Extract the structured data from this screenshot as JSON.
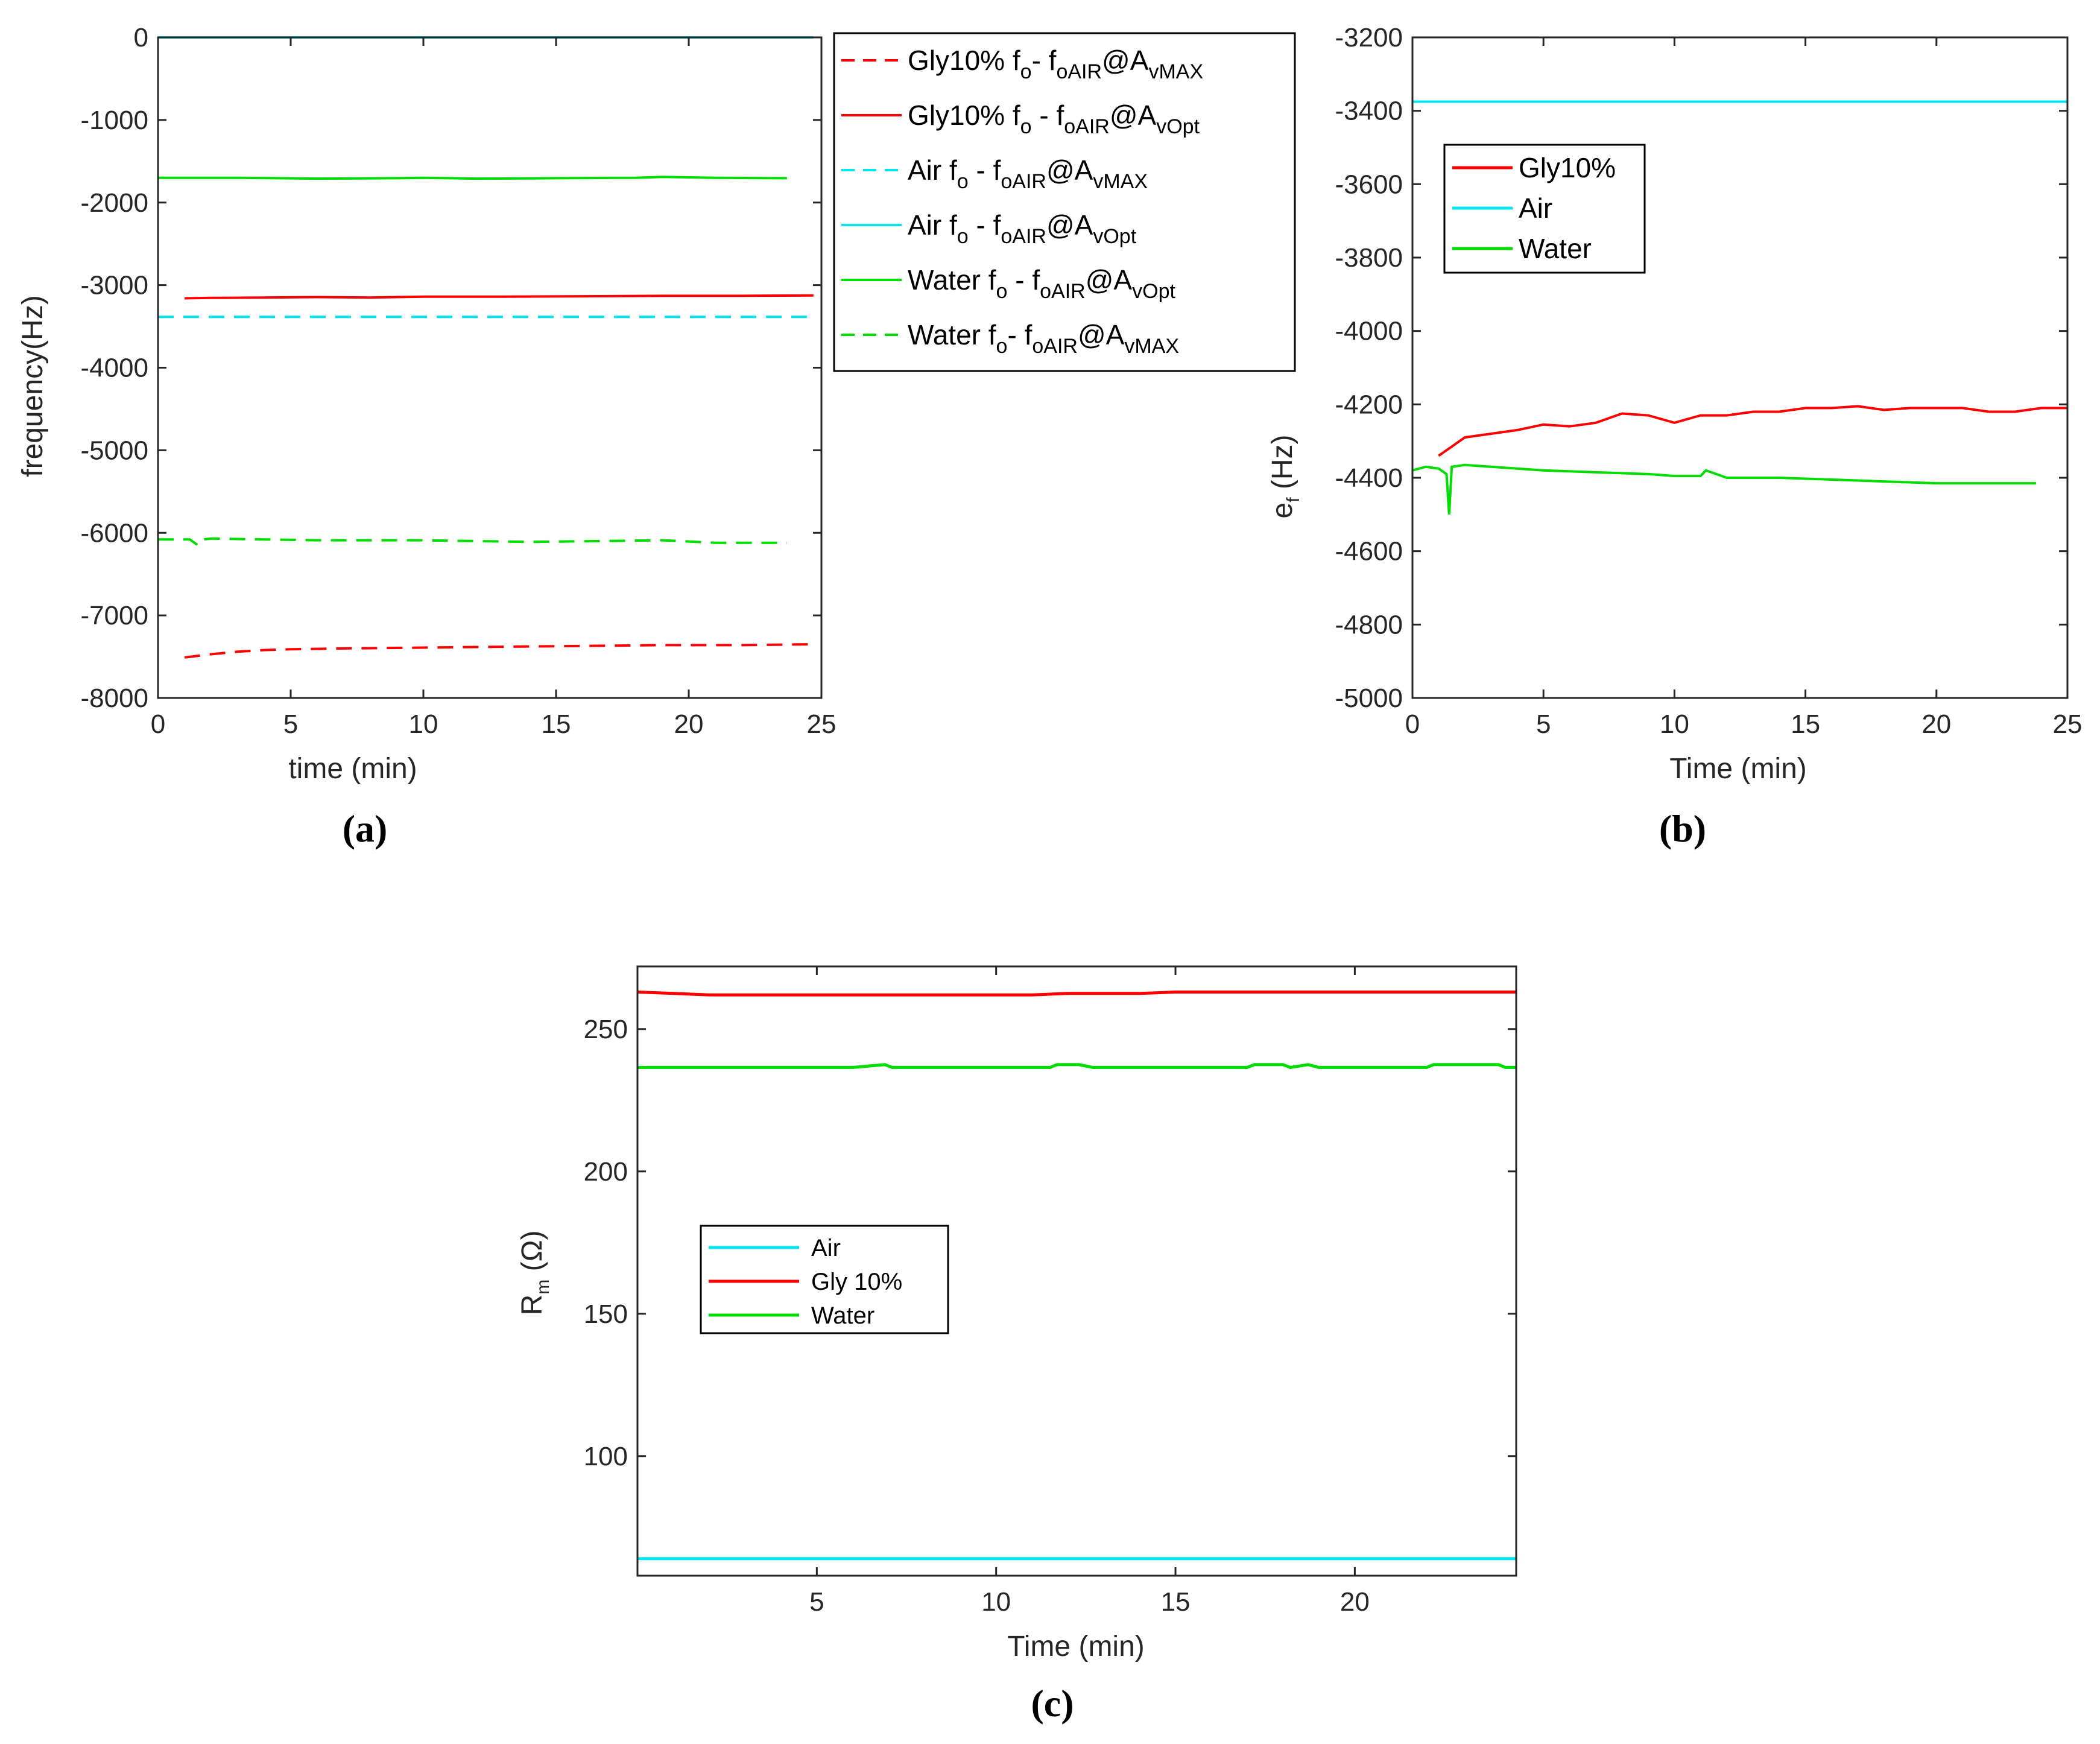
{
  "colors": {
    "gly": "#ff0000",
    "air": "#00e5ee",
    "water": "#00dd00",
    "axis": "#262626"
  },
  "chart_data": [
    {
      "panel": "(a)",
      "type": "line",
      "title": "",
      "xlabel": "time (min)",
      "ylabel": "frequency(Hz)",
      "xlim": [
        0,
        25
      ],
      "ylim": [
        -8000,
        0
      ],
      "xticks": [
        0,
        5,
        10,
        15,
        20,
        25
      ],
      "xtick_labels": [
        "0",
        "5",
        "10",
        "15",
        "20",
        "25"
      ],
      "yticks": [
        0,
        -1000,
        -2000,
        -3000,
        -4000,
        -5000,
        -6000,
        -7000,
        -8000
      ],
      "ytick_labels": [
        "0",
        "-1000",
        "-2000",
        "-3000",
        "-4000",
        "-5000",
        "-6000",
        "-7000",
        "-8000"
      ],
      "series": [
        {
          "key": "gly_max",
          "legend": {
            "main": "Gly10% f",
            "s1": "o",
            "m2": "- f",
            "s2": "oAIR",
            "m3": "@A",
            "s3": "vMAX"
          },
          "color": "gly",
          "dashed": true,
          "x": [
            1,
            2,
            3,
            4,
            5,
            7,
            10,
            13,
            16,
            19,
            22,
            24.7
          ],
          "y": [
            -7510,
            -7470,
            -7440,
            -7420,
            -7410,
            -7400,
            -7390,
            -7380,
            -7370,
            -7360,
            -7360,
            -7350
          ]
        },
        {
          "key": "gly_opt",
          "legend": {
            "main": "Gly10% f",
            "s1": "o",
            "m2": " - f",
            "s2": "oAIR",
            "m3": "@A",
            "s3": "vOpt"
          },
          "color": "gly",
          "dashed": false,
          "x": [
            1,
            2,
            4,
            6,
            8,
            10,
            13,
            16,
            19,
            22,
            24.7
          ],
          "y": [
            -3160,
            -3155,
            -3150,
            -3145,
            -3150,
            -3140,
            -3140,
            -3135,
            -3130,
            -3130,
            -3125
          ]
        },
        {
          "key": "air_max",
          "legend": {
            "main": "Air f",
            "s1": "o",
            "m2": " - f",
            "s2": "oAIR",
            "m3": "@A",
            "s3": "vMAX"
          },
          "color": "air",
          "dashed": true,
          "x": [
            0,
            24.7
          ],
          "y": [
            -3385,
            -3385
          ]
        },
        {
          "key": "air_opt",
          "legend": {
            "main": "Air f",
            "s1": "o",
            "m2": " - f",
            "s2": "oAIR",
            "m3": "@A",
            "s3": "vOpt"
          },
          "color": "air",
          "dashed": false,
          "x": [
            0,
            24.7
          ],
          "y": [
            0,
            0
          ]
        },
        {
          "key": "water_opt",
          "legend": {
            "main": "Water f",
            "s1": "o",
            "m2": " - f",
            "s2": "oAIR",
            "m3": "@A",
            "s3": "vOpt"
          },
          "color": "water",
          "dashed": false,
          "x": [
            0,
            3,
            6,
            9,
            10,
            12,
            15,
            18,
            19,
            21,
            23.7
          ],
          "y": [
            -1700,
            -1700,
            -1710,
            -1705,
            -1700,
            -1710,
            -1705,
            -1700,
            -1690,
            -1700,
            -1705
          ]
        },
        {
          "key": "water_max",
          "legend": {
            "main": "Water f",
            "s1": "o",
            "m2": "- f",
            "s2": "oAIR",
            "m3": "@A",
            "s3": "vMAX"
          },
          "color": "water",
          "dashed": true,
          "x": [
            0,
            1.2,
            1.5,
            1.7,
            2,
            4,
            6,
            10,
            14,
            19,
            21,
            23.7
          ],
          "y": [
            -6080,
            -6080,
            -6150,
            -6080,
            -6070,
            -6080,
            -6090,
            -6090,
            -6110,
            -6090,
            -6120,
            -6120
          ]
        }
      ]
    },
    {
      "panel": "(b)",
      "type": "line",
      "title": "",
      "xlabel": "Time (min)",
      "ylabel": {
        "main": "e",
        "sub": "f",
        "rest": " (Hz)"
      },
      "xlim": [
        0,
        25
      ],
      "ylim": [
        -5000,
        -3200
      ],
      "xticks": [
        0,
        5,
        10,
        15,
        20,
        25
      ],
      "xtick_labels": [
        "0",
        "5",
        "10",
        "15",
        "20",
        "25"
      ],
      "yticks": [
        -3200,
        -3400,
        -3600,
        -3800,
        -4000,
        -4200,
        -4400,
        -4600,
        -4800,
        -5000
      ],
      "ytick_labels": [
        "-3200",
        "-3400",
        "-3600",
        "-3800",
        "-4000",
        "-4200",
        "-4400",
        "-4600",
        "-4800",
        "-5000"
      ],
      "series": [
        {
          "key": "gly",
          "legend": "Gly10%",
          "color": "gly",
          "x": [
            1,
            2,
            3,
            4,
            5,
            6,
            7,
            8,
            9,
            10,
            11,
            12,
            13,
            14,
            15,
            16,
            17,
            18,
            19,
            20,
            21,
            22,
            23,
            24,
            25
          ],
          "y": [
            -4340,
            -4290,
            -4280,
            -4270,
            -4255,
            -4260,
            -4250,
            -4225,
            -4230,
            -4250,
            -4230,
            -4230,
            -4220,
            -4220,
            -4210,
            -4210,
            -4205,
            -4215,
            -4210,
            -4210,
            -4210,
            -4220,
            -4220,
            -4210,
            -4210
          ]
        },
        {
          "key": "air",
          "legend": "Air",
          "color": "air",
          "x": [
            0,
            25
          ],
          "y": [
            -3375,
            -3375
          ]
        },
        {
          "key": "water",
          "legend": "Water",
          "color": "water",
          "x": [
            0,
            0.5,
            1,
            1.3,
            1.4,
            1.5,
            2,
            3,
            5,
            7,
            9,
            10,
            11,
            11.2,
            12,
            14,
            16,
            18,
            20,
            22,
            23.8
          ],
          "y": [
            -4380,
            -4370,
            -4375,
            -4390,
            -4500,
            -4370,
            -4365,
            -4370,
            -4380,
            -4385,
            -4390,
            -4395,
            -4395,
            -4380,
            -4400,
            -4400,
            -4405,
            -4410,
            -4415,
            -4415,
            -4415
          ]
        }
      ]
    },
    {
      "panel": "(c)",
      "type": "line",
      "title": "",
      "xlabel": "Time (min)",
      "ylabel": {
        "main": "R",
        "sub": "m",
        "rest": " (Ω)"
      },
      "xlim": [
        0,
        24.5
      ],
      "ylim": [
        58,
        272
      ],
      "xticks": [
        5,
        10,
        15,
        20
      ],
      "xtick_labels": [
        "5",
        "10",
        "15",
        "20"
      ],
      "yticks": [
        250,
        200,
        150,
        100
      ],
      "ytick_labels": [
        "250",
        "200",
        "150",
        "100"
      ],
      "series": [
        {
          "key": "air",
          "legend": "Air",
          "color": "air",
          "x": [
            0,
            24.5
          ],
          "y": [
            64,
            64
          ]
        },
        {
          "key": "gly",
          "legend": "Gly 10%",
          "color": "gly",
          "x": [
            0,
            1,
            2,
            5,
            8,
            11,
            12,
            14,
            15,
            18,
            21,
            24.5
          ],
          "y": [
            263,
            262.5,
            262,
            262,
            262,
            262,
            262.5,
            262.5,
            263,
            263,
            263,
            263
          ]
        },
        {
          "key": "water",
          "legend": "Water",
          "color": "water",
          "x": [
            0,
            6,
            6.9,
            7.1,
            11.5,
            11.7,
            12.3,
            12.7,
            13.0,
            17,
            17.2,
            18.0,
            18.2,
            18.7,
            19.0,
            22,
            22.2,
            24.0,
            24.2,
            24.5
          ],
          "y": [
            236.5,
            236.5,
            237.5,
            236.5,
            236.5,
            237.5,
            237.5,
            236.5,
            236.5,
            236.5,
            237.5,
            237.5,
            236.5,
            237.5,
            236.5,
            236.5,
            237.5,
            237.5,
            236.5,
            236.5
          ]
        }
      ]
    }
  ]
}
